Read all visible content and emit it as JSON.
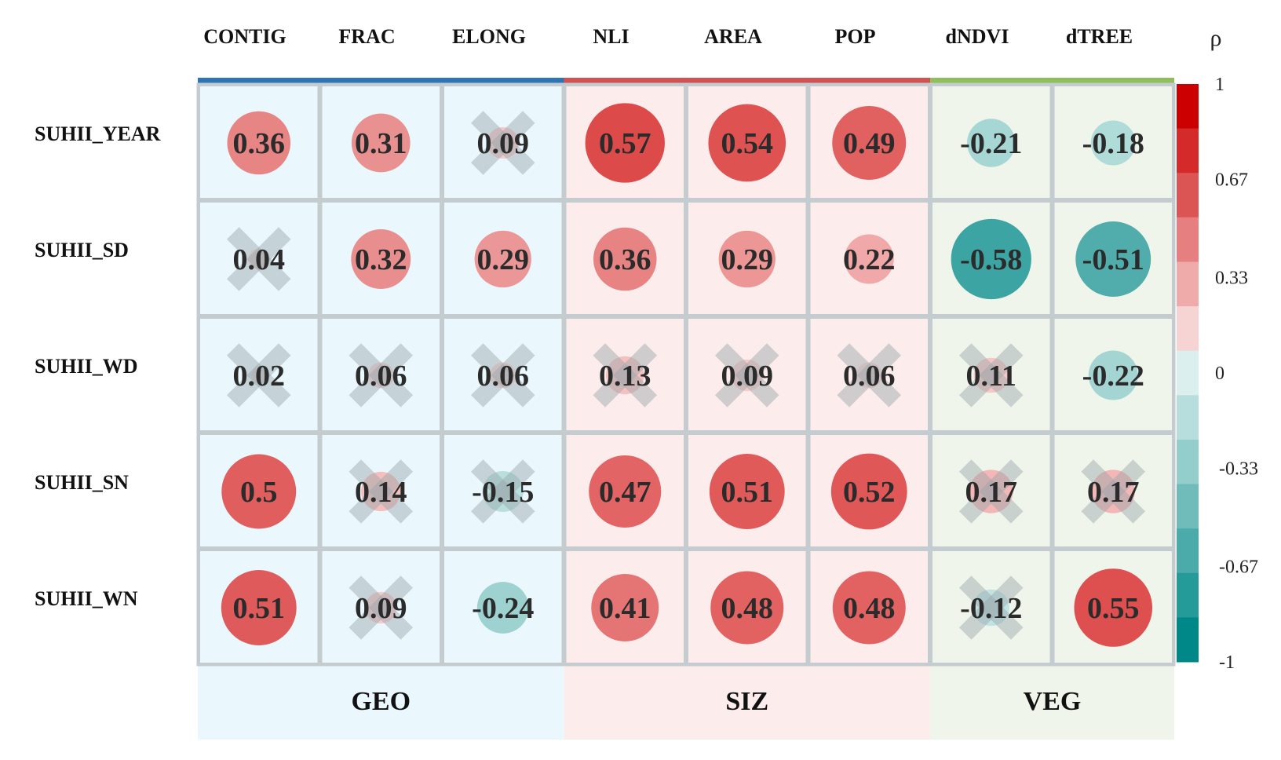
{
  "chart_data": {
    "type": "heatmap",
    "title": "",
    "columns": [
      "CONTIG",
      "FRAC",
      "ELONG",
      "NLI",
      "AREA",
      "POP",
      "dNDVI",
      "dTREE"
    ],
    "rows": [
      "SUHII_YEAR",
      "SUHII_SD",
      "SUHII_WD",
      "SUHII_SN",
      "SUHII_WN"
    ],
    "values": [
      [
        0.36,
        0.31,
        0.09,
        0.57,
        0.54,
        0.49,
        -0.21,
        -0.18
      ],
      [
        0.04,
        0.32,
        0.29,
        0.36,
        0.29,
        0.22,
        -0.58,
        -0.51
      ],
      [
        0.02,
        0.06,
        0.06,
        0.13,
        0.09,
        0.06,
        0.11,
        -0.22
      ],
      [
        0.5,
        0.14,
        -0.15,
        0.47,
        0.51,
        0.52,
        0.17,
        0.17
      ],
      [
        0.51,
        0.09,
        -0.24,
        0.41,
        0.48,
        0.48,
        -0.12,
        0.55
      ]
    ],
    "value_labels": [
      [
        "0.36",
        "0.31",
        "0.09",
        "0.57",
        "0.54",
        "0.49",
        "-0.21",
        "-0.18"
      ],
      [
        "0.04",
        "0.32",
        "0.29",
        "0.36",
        "0.29",
        "0.22",
        "-0.58",
        "-0.51"
      ],
      [
        "0.02",
        "0.06",
        "0.06",
        "0.13",
        "0.09",
        "0.06",
        "0.11",
        "-0.22"
      ],
      [
        "0.5",
        "0.14",
        "-0.15",
        "0.47",
        "0.51",
        "0.52",
        "0.17",
        "0.17"
      ],
      [
        "0.51",
        "0.09",
        "-0.24",
        "0.41",
        "0.48",
        "0.48",
        "-0.12",
        "0.55"
      ]
    ],
    "not_significant": [
      [
        false,
        false,
        true,
        false,
        false,
        false,
        false,
        false
      ],
      [
        true,
        false,
        false,
        false,
        false,
        false,
        false,
        false
      ],
      [
        true,
        true,
        true,
        true,
        true,
        true,
        true,
        false
      ],
      [
        false,
        true,
        true,
        false,
        false,
        false,
        true,
        true
      ],
      [
        false,
        true,
        false,
        false,
        false,
        false,
        true,
        false
      ]
    ],
    "groups": [
      {
        "name": "GEO",
        "columns": [
          "CONTIG",
          "FRAC",
          "ELONG"
        ],
        "bar_color": "#2e75b6",
        "bg_color": "#eaf7fd"
      },
      {
        "name": "SIZ",
        "columns": [
          "NLI",
          "AREA",
          "POP"
        ],
        "bar_color": "#d05252",
        "bg_color": "#fcecec"
      },
      {
        "name": "VEG",
        "columns": [
          "dNDVI",
          "dTREE"
        ],
        "bar_color": "#8fbf5a",
        "bg_color": "#eff5ea"
      }
    ],
    "colorbar": {
      "title": "ρ",
      "range": [
        -1,
        1
      ],
      "ticks": [
        1,
        0.67,
        0.33,
        0,
        -0.33,
        -0.67,
        -1
      ],
      "tick_labels": [
        "1",
        "0.67",
        "0.33",
        "0",
        "-0.33",
        "-0.67",
        "-1"
      ],
      "colors": [
        "#cc0000",
        "#d42a2a",
        "#dc5555",
        "#e68080",
        "#efaaaa",
        "#f7d4d4",
        "#dbefee",
        "#b7dedd",
        "#93cdcc",
        "#6fbcbb",
        "#4aabaa",
        "#249a99",
        "#008888"
      ]
    }
  }
}
